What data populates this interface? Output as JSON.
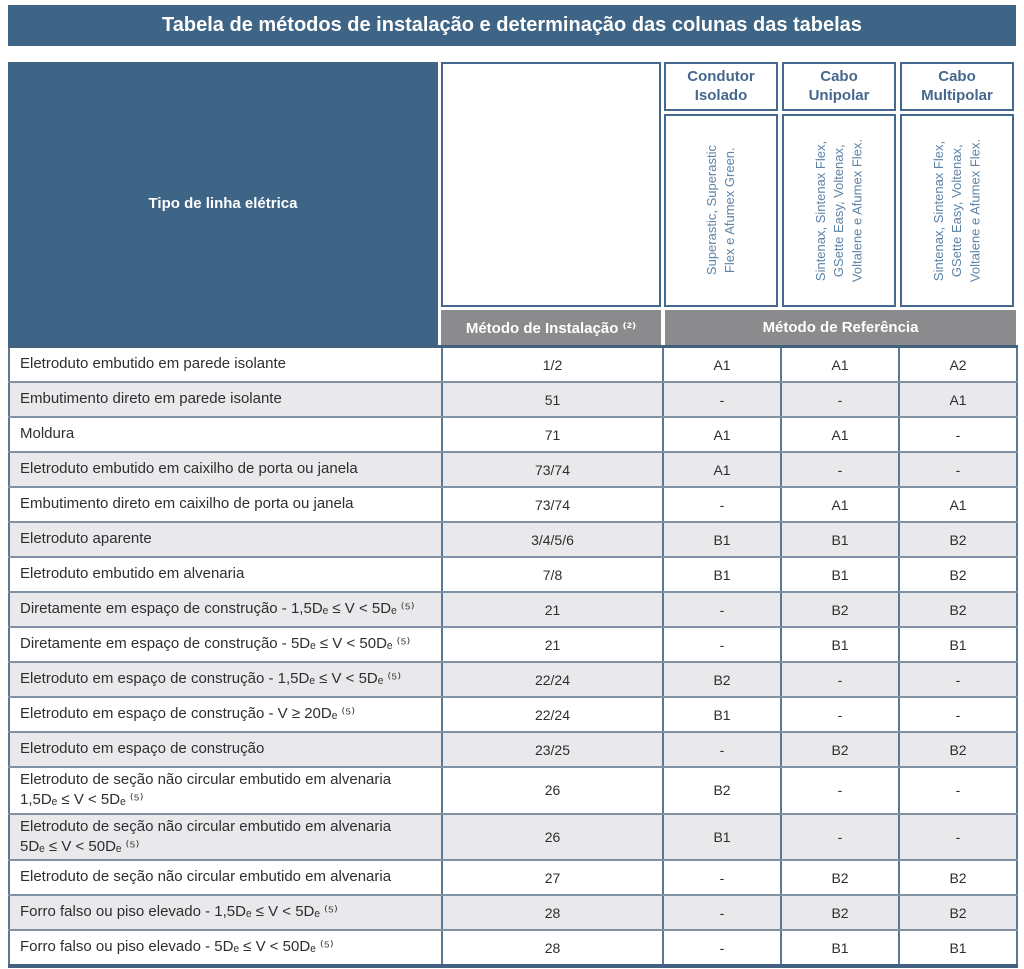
{
  "title": "Tabela de métodos de instalação e determinação das colunas das tabelas",
  "colors": {
    "dark_blue": "#3e6486",
    "header_text_blue": "#46688f",
    "vertical_text_blue": "#5d83a6",
    "gray_header_bg": "#8b8b8d",
    "alt_row_bg": "#e9e9eb",
    "border_blue": "#44688e",
    "grid_vertical": "#5a7795",
    "grid_horizontal": "#8091a4"
  },
  "header": {
    "row_type_label": "Tipo de linha elétrica",
    "installation_method_label": "Método de Instalação ⁽²⁾",
    "reference_method_label": "Método de Referência",
    "groups": [
      {
        "label": "Condutor\nIsolado",
        "products": "Superastic, Superastic\nFlex e Afumex Green."
      },
      {
        "label": "Cabo\nUnipolar",
        "products": "Sintenax, Sintenax Flex,\nGSette Easy, Voltenax,\nVoltalene e Afumex Flex."
      },
      {
        "label": "Cabo\nMultipolar",
        "products": "Sintenax, Sintenax Flex,\nGSette Easy, Voltenax,\nVoltalene e Afumex Flex."
      }
    ]
  },
  "table": {
    "rows": [
      {
        "label": "Eletroduto embutido em parede isolante",
        "method": "1/2",
        "condutor_isolado": "A1",
        "cabo_unipolar": "A1",
        "cabo_multipolar": "A2"
      },
      {
        "label": "Embutimento direto em parede isolante",
        "method": "51",
        "condutor_isolado": "-",
        "cabo_unipolar": "-",
        "cabo_multipolar": "A1"
      },
      {
        "label": "Moldura",
        "method": "71",
        "condutor_isolado": "A1",
        "cabo_unipolar": "A1",
        "cabo_multipolar": "-"
      },
      {
        "label": "Eletroduto embutido em caixilho de porta ou janela",
        "method": "73/74",
        "condutor_isolado": "A1",
        "cabo_unipolar": "-",
        "cabo_multipolar": "-"
      },
      {
        "label": "Embutimento direto em caixilho de porta ou janela",
        "method": "73/74",
        "condutor_isolado": "-",
        "cabo_unipolar": "A1",
        "cabo_multipolar": "A1"
      },
      {
        "label": "Eletroduto aparente",
        "method": "3/4/5/6",
        "condutor_isolado": "B1",
        "cabo_unipolar": "B1",
        "cabo_multipolar": "B2"
      },
      {
        "label": "Eletroduto embutido em alvenaria",
        "method": "7/8",
        "condutor_isolado": "B1",
        "cabo_unipolar": "B1",
        "cabo_multipolar": "B2"
      },
      {
        "label": "Diretamente em espaço de construção - 1,5Dₑ ≤ V < 5Dₑ ⁽⁵⁾",
        "method": "21",
        "condutor_isolado": "-",
        "cabo_unipolar": "B2",
        "cabo_multipolar": "B2"
      },
      {
        "label": "Diretamente em espaço de construção - 5Dₑ ≤ V < 50Dₑ ⁽⁵⁾",
        "method": "21",
        "condutor_isolado": "-",
        "cabo_unipolar": "B1",
        "cabo_multipolar": "B1"
      },
      {
        "label": "Eletroduto em espaço de construção - 1,5Dₑ ≤ V < 5Dₑ ⁽⁵⁾",
        "method": "22/24",
        "condutor_isolado": "B2",
        "cabo_unipolar": "-",
        "cabo_multipolar": "-"
      },
      {
        "label": "Eletroduto em espaço de construção - V ≥ 20Dₑ ⁽⁵⁾",
        "method": "22/24",
        "condutor_isolado": "B1",
        "cabo_unipolar": "-",
        "cabo_multipolar": "-"
      },
      {
        "label": "Eletroduto em espaço de construção",
        "method": "23/25",
        "condutor_isolado": "-",
        "cabo_unipolar": "B2",
        "cabo_multipolar": "B2"
      },
      {
        "label": "Eletroduto de seção não circular embutido em alvenaria\n1,5Dₑ ≤ V < 5Dₑ ⁽⁵⁾",
        "method": "26",
        "condutor_isolado": "B2",
        "cabo_unipolar": "-",
        "cabo_multipolar": "-"
      },
      {
        "label": "Eletroduto de seção não circular embutido em alvenaria\n5Dₑ ≤ V < 50Dₑ ⁽⁵⁾",
        "method": "26",
        "condutor_isolado": "B1",
        "cabo_unipolar": "-",
        "cabo_multipolar": "-"
      },
      {
        "label": "Eletroduto de seção não circular embutido em alvenaria",
        "method": "27",
        "condutor_isolado": "-",
        "cabo_unipolar": "B2",
        "cabo_multipolar": "B2"
      },
      {
        "label": "Forro falso ou piso elevado - 1,5Dₑ ≤ V < 5Dₑ ⁽⁵⁾",
        "method": "28",
        "condutor_isolado": "-",
        "cabo_unipolar": "B2",
        "cabo_multipolar": "B2"
      },
      {
        "label": "Forro falso ou piso elevado - 5Dₑ ≤ V < 50Dₑ ⁽⁵⁾",
        "method": "28",
        "condutor_isolado": "-",
        "cabo_unipolar": "B1",
        "cabo_multipolar": "B1"
      }
    ]
  }
}
